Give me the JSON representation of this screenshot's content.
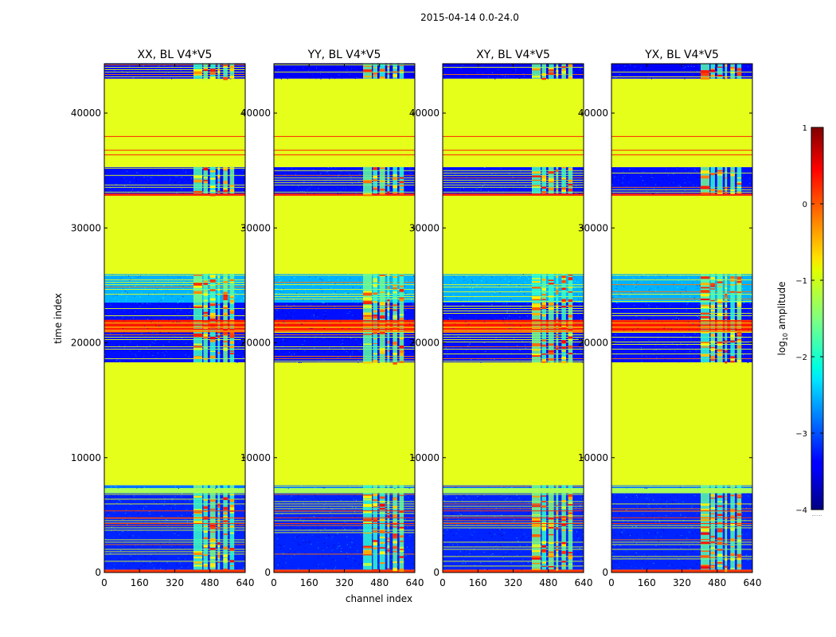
{
  "chart_data": {
    "type": "heatmap",
    "suptitle": "2015-04-14 0.0-24.0",
    "xlabel": "channel index",
    "ylabel": "time index",
    "xlim": [
      0,
      640
    ],
    "ylim": [
      0,
      44300
    ],
    "xticks": [
      0,
      160,
      320,
      480,
      640
    ],
    "yticks": [
      0,
      10000,
      20000,
      30000,
      40000
    ],
    "colormap": "jet",
    "colorbar": {
      "label_prefix": "log",
      "label_sub": "10",
      "label_suffix": " amplitude",
      "range": [
        -4,
        1
      ],
      "ticks": [
        1,
        0,
        -1,
        -2,
        -3,
        -4
      ],
      "tick_labels": [
        "1",
        "0",
        "−1",
        "−2",
        "−3",
        "−4"
      ],
      "below_note": "......"
    },
    "panels": [
      {
        "title": "XX, BL V4*V5",
        "variant": 0
      },
      {
        "title": "YY, BL V4*V5",
        "variant": 1
      },
      {
        "title": "XY, BL V4*V5",
        "variant": 2
      },
      {
        "title": "YX, BL V4*V5",
        "variant": 3
      }
    ],
    "time_bands": [
      {
        "t0": 0,
        "t1": 250,
        "level": 0.1,
        "label": "red strip at start"
      },
      {
        "t0": 250,
        "t1": 6900,
        "level": -3.2,
        "label": "noisy low-amplitude"
      },
      {
        "t0": 6900,
        "t1": 7350,
        "level": -1.3,
        "label": "transition"
      },
      {
        "t0": 7350,
        "t1": 7600,
        "level": -2.8,
        "label": "dark line"
      },
      {
        "t0": 7600,
        "t1": 18300,
        "level": -1.0,
        "label": "flagged (constant)"
      },
      {
        "t0": 18300,
        "t1": 23500,
        "level": -3.3,
        "label": "striped noisy"
      },
      {
        "t0": 20900,
        "t1": 22000,
        "level": 0.2,
        "label": "strong broadband feature"
      },
      {
        "t0": 23500,
        "t1": 26000,
        "level": -2.5,
        "label": "striped"
      },
      {
        "t0": 26000,
        "t1": 29500,
        "level": -1.0,
        "label": "mostly flagged, lines"
      },
      {
        "t0": 29500,
        "t1": 32800,
        "level": -1.0,
        "label": "flagged (constant)"
      },
      {
        "t0": 32800,
        "t1": 33000,
        "level": 0.2,
        "label": "red line"
      },
      {
        "t0": 33000,
        "t1": 35300,
        "level": -3.3,
        "label": "noisy low-amplitude"
      },
      {
        "t0": 35300,
        "t1": 43000,
        "level": -1.0,
        "label": "flagged (constant)"
      },
      {
        "t0": 43000,
        "t1": 44300,
        "level": -3.4,
        "label": "striped top"
      }
    ],
    "rfi_channels": [
      [
        405,
        445
      ],
      [
        450,
        470
      ],
      [
        480,
        505
      ],
      [
        515,
        525
      ],
      [
        540,
        560
      ],
      [
        570,
        590
      ]
    ]
  }
}
